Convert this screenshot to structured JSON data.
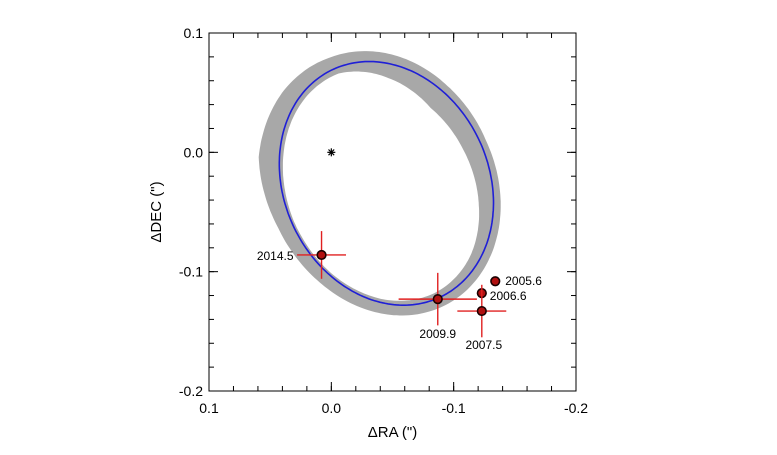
{
  "chart_data": {
    "type": "scatter",
    "title": "",
    "xlabel": "ΔRA (\")",
    "ylabel": "ΔDEC (\")",
    "xlim": [
      0.1,
      -0.2
    ],
    "ylim": [
      -0.2,
      0.1
    ],
    "x_reversed": true,
    "xticks": [
      {
        "value": 0.1,
        "label": "0.1"
      },
      {
        "value": 0.0,
        "label": "0.0"
      },
      {
        "value": -0.1,
        "label": "-0.1"
      },
      {
        "value": -0.2,
        "label": "-0.2"
      }
    ],
    "yticks": [
      {
        "value": 0.1,
        "label": "0.1"
      },
      {
        "value": 0.0,
        "label": "0.0"
      },
      {
        "value": -0.1,
        "label": "-0.1"
      },
      {
        "value": -0.2,
        "label": "-0.2"
      }
    ],
    "central_star": {
      "x": 0.0,
      "y": 0.0,
      "marker": "*"
    },
    "orbit": {
      "color": "#1f1fd6",
      "ellipse_center": {
        "x": -0.045,
        "y": -0.026
      },
      "semi_major": 0.105,
      "semi_minor": 0.084,
      "rotation_deg": 67
    },
    "uncertainty_band": {
      "color": "#a8a8a8",
      "inner_offset": [
        -0.005,
        -0.012,
        -0.017,
        -0.015,
        -0.012,
        -0.008,
        -0.005,
        -0.003,
        -0.002,
        -0.002,
        -0.003,
        -0.004,
        -0.005
      ],
      "outer_offset": [
        0.01,
        0.008,
        0.006,
        0.005,
        0.006,
        0.007,
        0.008,
        0.009,
        0.01,
        0.012,
        0.017,
        0.014,
        0.01
      ]
    },
    "points": [
      {
        "label": "2005.6",
        "x": -0.134,
        "y": -0.108,
        "xerr": 0.003,
        "yerr": 0.003
      },
      {
        "label": "2006.6",
        "x": -0.123,
        "y": -0.118,
        "xerr": 0.004,
        "yerr": 0.004
      },
      {
        "label": "2007.5",
        "x": -0.123,
        "y": -0.133,
        "xerr": 0.02,
        "yerr": 0.022
      },
      {
        "label": "2009.9",
        "x": -0.087,
        "y": -0.123,
        "xerr": 0.032,
        "yerr": 0.022
      },
      {
        "label": "2014.5",
        "x": 0.008,
        "y": -0.086,
        "xerr": 0.02,
        "yerr": 0.02
      }
    ],
    "marker_color": "#1a0000",
    "error_color": "#e02020",
    "grid": false,
    "legend": "none"
  }
}
